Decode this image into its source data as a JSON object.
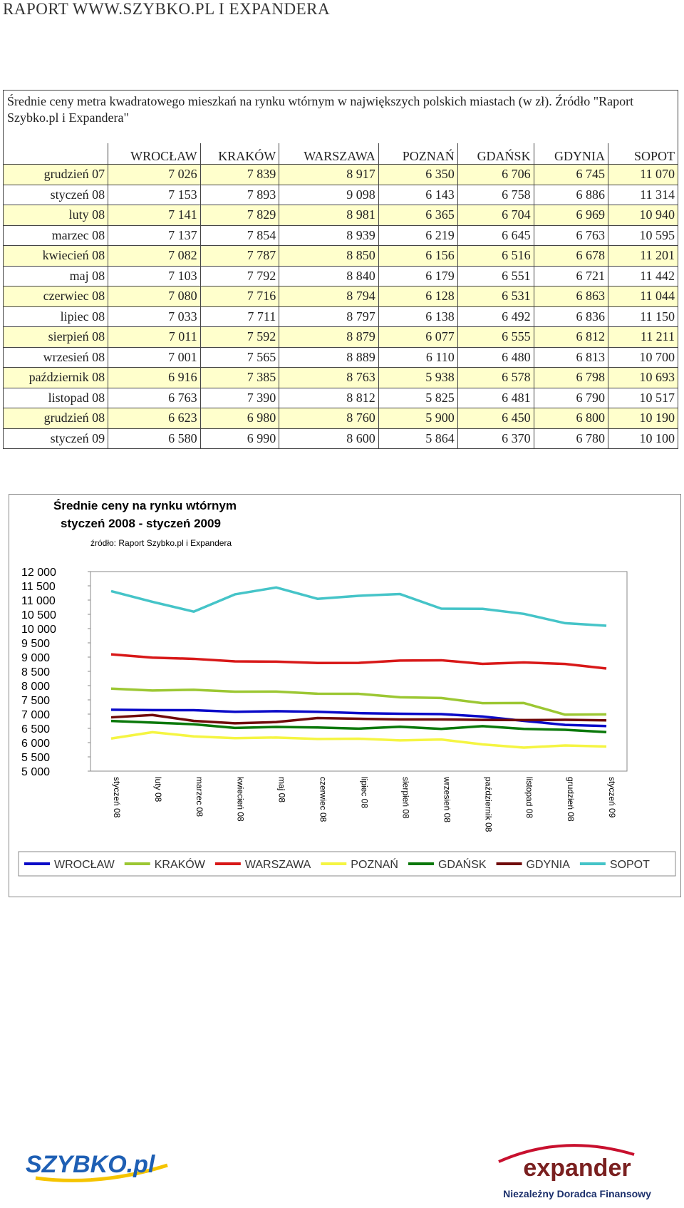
{
  "header": {
    "title": "RAPORT WWW.SZYBKO.PL I EXPANDERA"
  },
  "table": {
    "caption": "Średnie ceny metra kwadratowego mieszkań na rynku wtórnym w największych polskich miastach (w zł). Źródło \"Raport Szybko.pl i Expandera\"",
    "columns": [
      "WROCŁAW",
      "KRAKÓW",
      "WARSZAWA",
      "POZNAŃ",
      "GDAŃSK",
      "GDYNIA",
      "SOPOT"
    ],
    "rows": [
      [
        "grudzień 07",
        "7 026",
        "7 839",
        "8 917",
        "6 350",
        "6 706",
        "6 745",
        "11 070"
      ],
      [
        "styczeń 08",
        "7 153",
        "7 893",
        "9 098",
        "6 143",
        "6 758",
        "6 886",
        "11 314"
      ],
      [
        "luty 08",
        "7 141",
        "7 829",
        "8 981",
        "6 365",
        "6 704",
        "6 969",
        "10 940"
      ],
      [
        "marzec 08",
        "7 137",
        "7 854",
        "8 939",
        "6 219",
        "6 645",
        "6 763",
        "10 595"
      ],
      [
        "kwiecień 08",
        "7 082",
        "7 787",
        "8 850",
        "6 156",
        "6 516",
        "6 678",
        "11 201"
      ],
      [
        "maj 08",
        "7 103",
        "7 792",
        "8 840",
        "6 179",
        "6 551",
        "6 721",
        "11 442"
      ],
      [
        "czerwiec 08",
        "7 080",
        "7 716",
        "8 794",
        "6 128",
        "6 531",
        "6 863",
        "11 044"
      ],
      [
        "lipiec 08",
        "7 033",
        "7 711",
        "8 797",
        "6 138",
        "6 492",
        "6 836",
        "11 150"
      ],
      [
        "sierpień 08",
        "7 011",
        "7 592",
        "8 879",
        "6 077",
        "6 555",
        "6 812",
        "11 211"
      ],
      [
        "wrzesień 08",
        "7 001",
        "7 565",
        "8 889",
        "6 110",
        "6 480",
        "6 813",
        "10 700"
      ],
      [
        "październik 08",
        "6 916",
        "7 385",
        "8 763",
        "5 938",
        "6 578",
        "6 798",
        "10 693"
      ],
      [
        "listopad 08",
        "6 763",
        "7 390",
        "8 812",
        "5 825",
        "6 481",
        "6 790",
        "10 517"
      ],
      [
        "grudzień 08",
        "6 623",
        "6 980",
        "8 760",
        "5 900",
        "6 450",
        "6 800",
        "10 190"
      ],
      [
        "styczeń 09",
        "6 580",
        "6 990",
        "8 600",
        "5 864",
        "6 370",
        "6 780",
        "10 100"
      ]
    ]
  },
  "chart_data": {
    "type": "line",
    "title": "Średnie ceny na rynku wtórnym",
    "subtitle": "styczeń 2008 - styczeń 2009",
    "source": "źródło: Raport Szybko.pl i Expandera",
    "categories": [
      "styczeń 08",
      "luty 08",
      "marzec 08",
      "kwiecień 08",
      "maj 08",
      "czerwiec 08",
      "lipiec 08",
      "sierpień 08",
      "wrzesień 08",
      "październik 08",
      "listopad 08",
      "grudzień 08",
      "styczeń 09"
    ],
    "ylim": [
      5000,
      12000
    ],
    "yticks": [
      {
        "value": 12000,
        "label": "12 000"
      },
      {
        "value": 11500,
        "label": "11 500"
      },
      {
        "value": 11000,
        "label": "11 000"
      },
      {
        "value": 10500,
        "label": "10 500"
      },
      {
        "value": 10000,
        "label": "10 000"
      },
      {
        "value": 9500,
        "label": "9 500"
      },
      {
        "value": 9000,
        "label": "9 000"
      },
      {
        "value": 8500,
        "label": "8 500"
      },
      {
        "value": 8000,
        "label": "8 000"
      },
      {
        "value": 7500,
        "label": "7 500"
      },
      {
        "value": 7000,
        "label": "7 000"
      },
      {
        "value": 6500,
        "label": "6 500"
      },
      {
        "value": 6000,
        "label": "6 000"
      },
      {
        "value": 5500,
        "label": "5 500"
      },
      {
        "value": 5000,
        "label": "5 000"
      }
    ],
    "grid": false,
    "series": [
      {
        "name": "WROCŁAW",
        "color": "#0a0ac8",
        "values": [
          7153,
          7141,
          7137,
          7082,
          7103,
          7080,
          7033,
          7011,
          7001,
          6916,
          6763,
          6623,
          6580
        ]
      },
      {
        "name": "KRAKÓW",
        "color": "#9cc733",
        "values": [
          7893,
          7829,
          7854,
          7787,
          7792,
          7716,
          7711,
          7592,
          7565,
          7385,
          7390,
          6980,
          6990
        ]
      },
      {
        "name": "WARSZAWA",
        "color": "#d81818",
        "values": [
          9098,
          8981,
          8939,
          8850,
          8840,
          8794,
          8797,
          8879,
          8889,
          8763,
          8812,
          8760,
          8600
        ]
      },
      {
        "name": "POZNAŃ",
        "color": "#f5f542",
        "values": [
          6143,
          6365,
          6219,
          6156,
          6179,
          6128,
          6138,
          6077,
          6110,
          5938,
          5825,
          5900,
          5864
        ]
      },
      {
        "name": "GDAŃSK",
        "color": "#0a780a",
        "values": [
          6758,
          6704,
          6645,
          6516,
          6551,
          6531,
          6492,
          6555,
          6480,
          6578,
          6481,
          6450,
          6370
        ]
      },
      {
        "name": "GDYNIA",
        "color": "#700a0a",
        "values": [
          6886,
          6969,
          6763,
          6678,
          6721,
          6863,
          6836,
          6812,
          6813,
          6798,
          6790,
          6800,
          6780
        ]
      },
      {
        "name": "SOPOT",
        "color": "#45c4c8",
        "values": [
          11314,
          10940,
          10595,
          11201,
          11442,
          11044,
          11150,
          11211,
          10700,
          10693,
          10517,
          10190,
          10100
        ]
      }
    ]
  },
  "logos": {
    "left": "SZYBKO.pl",
    "right": "expander",
    "right_tagline": "Niezależny Doradca Finansowy"
  }
}
